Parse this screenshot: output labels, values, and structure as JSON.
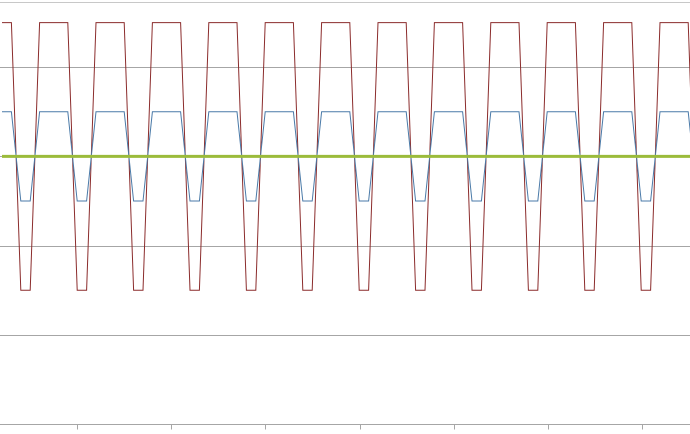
{
  "chart_data": {
    "type": "line",
    "x": [
      0,
      1,
      2,
      3,
      4,
      5,
      6,
      7,
      8,
      9,
      10,
      11,
      12,
      13,
      14,
      15,
      16,
      17,
      18,
      19,
      20,
      21,
      22,
      23,
      24,
      25,
      26,
      27,
      28,
      29,
      30,
      31,
      32,
      33,
      34,
      35,
      36,
      37,
      38,
      39,
      40,
      41,
      42,
      43,
      44,
      45,
      46,
      47,
      48,
      49,
      50,
      51,
      52,
      53,
      54,
      55,
      56,
      57,
      58,
      59,
      60,
      61,
      62,
      63,
      64,
      65,
      66,
      67,
      68,
      69,
      70,
      71,
      72,
      73,
      74
    ],
    "ylim": [
      -3,
      2
    ],
    "grid": true,
    "series": [
      {
        "color": "#8b2c2c",
        "values": [
          1.5,
          1.5,
          -1.5,
          -1.5,
          1.5,
          1.5,
          1.5,
          1.5,
          -1.5,
          -1.5,
          1.5,
          1.5,
          1.5,
          1.5,
          -1.5,
          -1.5,
          1.5,
          1.5,
          1.5,
          1.5,
          -1.5,
          -1.5,
          1.5,
          1.5,
          1.5,
          1.5,
          -1.5,
          -1.5,
          1.5,
          1.5,
          1.5,
          1.5,
          -1.5,
          -1.5,
          1.5,
          1.5,
          1.5,
          1.5,
          -1.5,
          -1.5,
          1.5,
          1.5,
          1.5,
          1.5,
          -1.5,
          -1.5,
          1.5,
          1.5,
          1.5,
          1.5,
          -1.5,
          -1.5,
          1.5,
          1.5,
          1.5,
          1.5,
          -1.5,
          -1.5,
          1.5,
          1.5,
          1.5,
          1.5,
          -1.5,
          -1.5,
          1.5,
          1.5,
          1.5,
          1.5,
          -1.5,
          -1.5,
          1.5,
          1.5,
          1.5,
          1.5,
          -1.5
        ]
      },
      {
        "color": "#4a7aa8",
        "values": [
          0.5,
          0.5,
          -0.5,
          -0.5,
          0.5,
          0.5,
          0.5,
          0.5,
          -0.5,
          -0.5,
          0.5,
          0.5,
          0.5,
          0.5,
          -0.5,
          -0.5,
          0.5,
          0.5,
          0.5,
          0.5,
          -0.5,
          -0.5,
          0.5,
          0.5,
          0.5,
          0.5,
          -0.5,
          -0.5,
          0.5,
          0.5,
          0.5,
          0.5,
          -0.5,
          -0.5,
          0.5,
          0.5,
          0.5,
          0.5,
          -0.5,
          -0.5,
          0.5,
          0.5,
          0.5,
          0.5,
          -0.5,
          -0.5,
          0.5,
          0.5,
          0.5,
          0.5,
          -0.5,
          -0.5,
          0.5,
          0.5,
          0.5,
          0.5,
          -0.5,
          -0.5,
          0.5,
          0.5,
          0.5,
          0.5,
          -0.5,
          -0.5,
          0.5,
          0.5,
          0.5,
          0.5,
          -0.5,
          -0.5,
          0.5,
          0.5,
          0.5,
          0.5,
          -0.5
        ]
      },
      {
        "color": "#9bbb3b",
        "values": [
          0,
          0,
          0,
          0,
          0,
          0,
          0,
          0,
          0,
          0,
          0,
          0,
          0,
          0,
          0,
          0,
          0,
          0,
          0,
          0,
          0,
          0,
          0,
          0,
          0,
          0,
          0,
          0,
          0,
          0,
          0,
          0,
          0,
          0,
          0,
          0,
          0,
          0,
          0,
          0,
          0,
          0,
          0,
          0,
          0,
          0,
          0,
          0,
          0,
          0,
          0,
          0,
          0,
          0,
          0,
          0,
          0,
          0,
          0,
          0,
          0,
          0,
          0,
          0,
          0,
          0,
          0,
          0,
          0,
          0,
          0,
          0,
          0,
          0,
          0
        ]
      }
    ]
  }
}
